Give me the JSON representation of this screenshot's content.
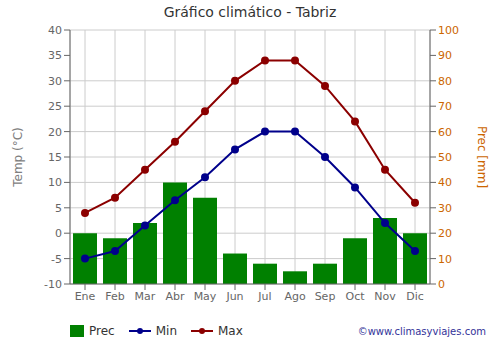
{
  "chart_data": {
    "type": "bar",
    "title": "Gráfico climático - Tabriz",
    "categories": [
      "Ene",
      "Feb",
      "Mar",
      "Abr",
      "May",
      "Jun",
      "Jul",
      "Ago",
      "Sep",
      "Oct",
      "Nov",
      "Dic"
    ],
    "series": [
      {
        "name": "Prec",
        "type": "bar",
        "color": "#008000",
        "axis": "y2",
        "values": [
          20,
          18,
          24,
          40,
          34,
          12,
          8,
          5,
          8,
          18,
          26,
          20
        ]
      },
      {
        "name": "Min",
        "type": "line",
        "color": "#00008B",
        "marker": "o",
        "values": [
          -5,
          -3.5,
          1.5,
          6.5,
          11,
          16.5,
          20,
          20,
          15,
          9,
          2,
          -3.5
        ]
      },
      {
        "name": "Max",
        "type": "line",
        "color": "#8B0000",
        "marker": "o",
        "values": [
          4,
          7,
          12.5,
          18,
          24,
          30,
          34,
          34,
          29,
          22,
          12.5,
          6
        ]
      }
    ],
    "ylabel": "Temp (°C)",
    "y2label": "Prec [mm]",
    "ylim": [
      -10,
      40
    ],
    "yticks": [
      -10,
      -5,
      0,
      5,
      10,
      15,
      20,
      25,
      30,
      35,
      40
    ],
    "y2lim": [
      0,
      100
    ],
    "y2ticks": [
      0,
      10,
      20,
      30,
      40,
      50,
      60,
      70,
      80,
      90,
      100
    ],
    "grid": true,
    "legend": "lower left",
    "annotations": [
      "©www.climasyviajes.com"
    ]
  }
}
